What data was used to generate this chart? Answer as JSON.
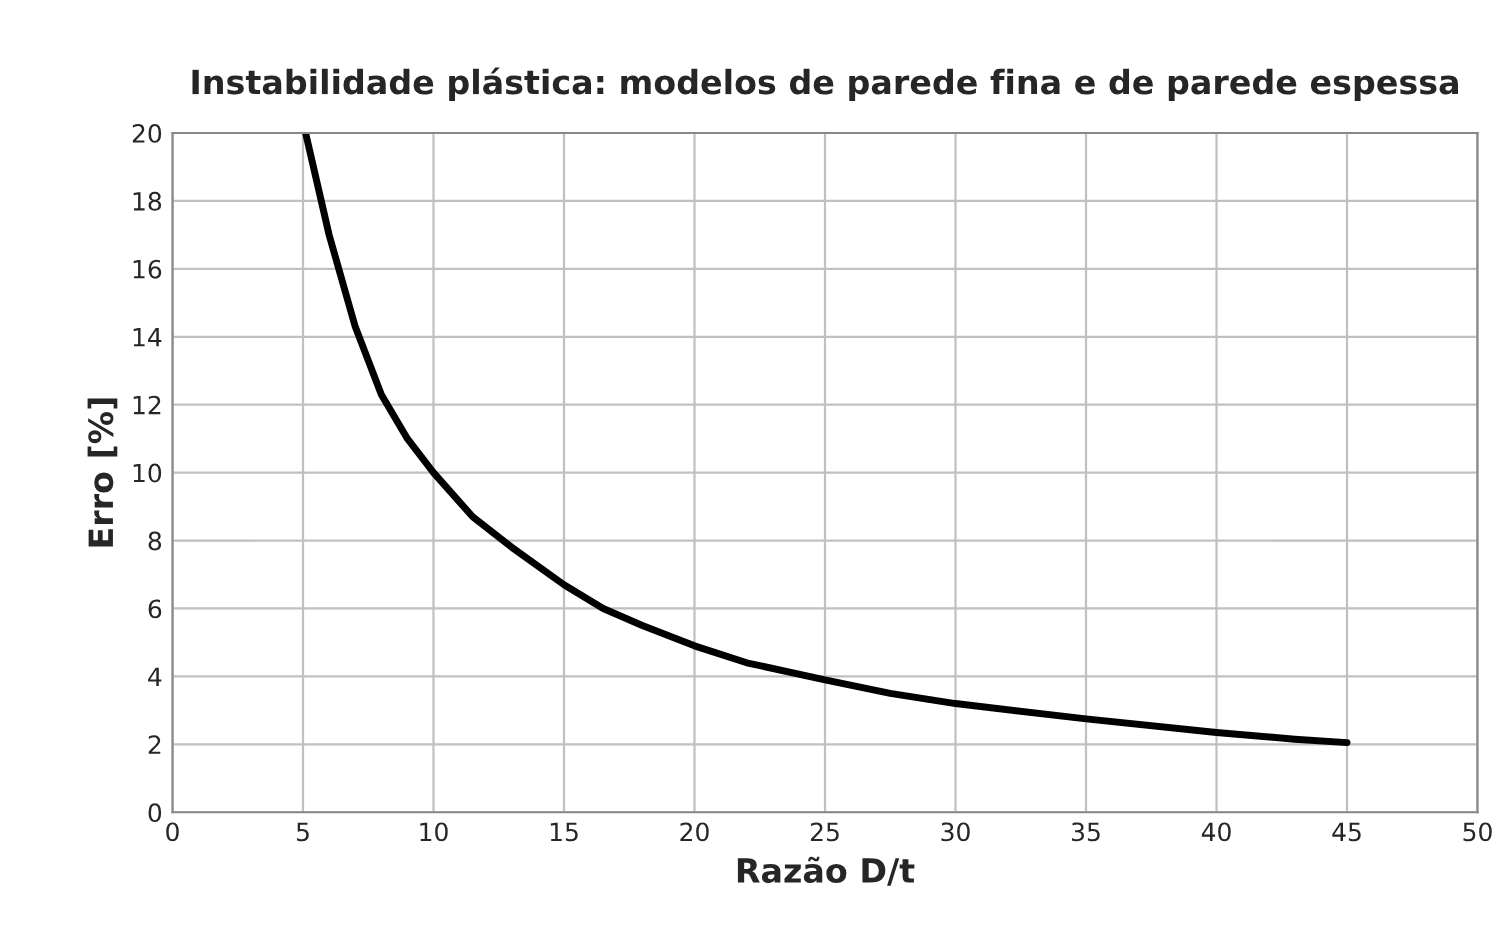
{
  "chart_data": {
    "type": "line",
    "title": "Instabilidade plástica: modelos de parede fina e de parede espessa",
    "xlabel": "Razão D/t",
    "ylabel": "Erro [%]",
    "x": [
      5.1,
      6,
      7,
      8,
      9,
      10,
      11.5,
      13,
      15,
      16.5,
      18,
      20,
      22,
      25,
      27.5,
      30,
      35,
      40,
      43,
      45
    ],
    "series": [
      {
        "color": "#000000",
        "values": [
          20,
          17,
          14.3,
          12.3,
          11,
          10,
          8.7,
          7.8,
          6.7,
          6,
          5.5,
          4.9,
          4.4,
          3.9,
          3.5,
          3.2,
          2.75,
          2.35,
          2.15,
          2.05
        ]
      }
    ],
    "xlim": [
      0,
      50
    ],
    "xticks": [
      0,
      5,
      10,
      15,
      20,
      25,
      30,
      35,
      40,
      45,
      50
    ],
    "ylim": [
      0,
      20
    ],
    "yticks": [
      0,
      2,
      4,
      6,
      8,
      10,
      12,
      14,
      16,
      18,
      20
    ],
    "grid": true,
    "marker": "none",
    "line_style": "solid"
  }
}
